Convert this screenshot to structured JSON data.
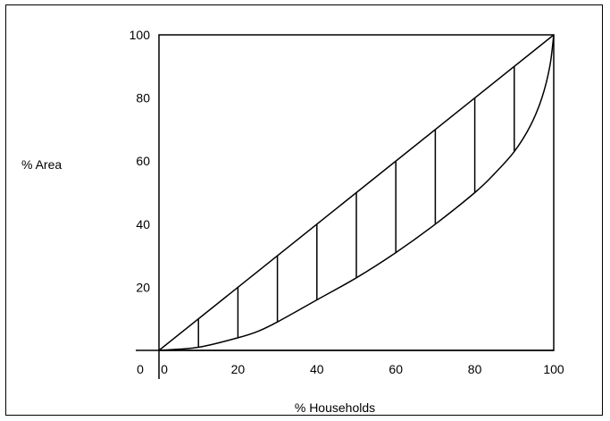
{
  "chart_data": {
    "type": "line",
    "title": "",
    "xlabel": "% Households",
    "ylabel": "% Area",
    "origin_label": "0",
    "xlim": [
      0,
      100
    ],
    "ylim": [
      0,
      100
    ],
    "x_ticks": [
      0,
      20,
      40,
      60,
      80,
      100
    ],
    "y_ticks": [
      20,
      40,
      60,
      80,
      100
    ],
    "x_tick_labels": [
      "0",
      "20",
      "40",
      "60",
      "80",
      "100"
    ],
    "y_tick_labels": [
      "20",
      "40",
      "60",
      "80",
      "100"
    ],
    "grid": false,
    "legend": "none",
    "series": [
      {
        "x": [
          0,
          100
        ],
        "y": [
          0,
          100
        ]
      },
      {
        "x": [
          0,
          10,
          20,
          25,
          30,
          40,
          50,
          60,
          70,
          80,
          85,
          90,
          94,
          97,
          99,
          100
        ],
        "y": [
          0,
          1,
          4,
          6,
          9,
          16,
          23,
          31,
          40,
          50,
          56,
          63,
          71,
          80,
          90,
          100
        ]
      }
    ],
    "vertical_segments": [
      {
        "x": 10,
        "y_low": 1,
        "y_high": 10
      },
      {
        "x": 20,
        "y_low": 4,
        "y_high": 20
      },
      {
        "x": 30,
        "y_low": 9,
        "y_high": 30
      },
      {
        "x": 40,
        "y_low": 16,
        "y_high": 40
      },
      {
        "x": 50,
        "y_low": 23,
        "y_high": 50
      },
      {
        "x": 60,
        "y_low": 31,
        "y_high": 60
      },
      {
        "x": 70,
        "y_low": 40,
        "y_high": 70
      },
      {
        "x": 80,
        "y_low": 50,
        "y_high": 80
      },
      {
        "x": 90,
        "y_low": 63,
        "y_high": 90
      }
    ],
    "colors": {
      "line": "#000000",
      "background": "#ffffff"
    }
  }
}
